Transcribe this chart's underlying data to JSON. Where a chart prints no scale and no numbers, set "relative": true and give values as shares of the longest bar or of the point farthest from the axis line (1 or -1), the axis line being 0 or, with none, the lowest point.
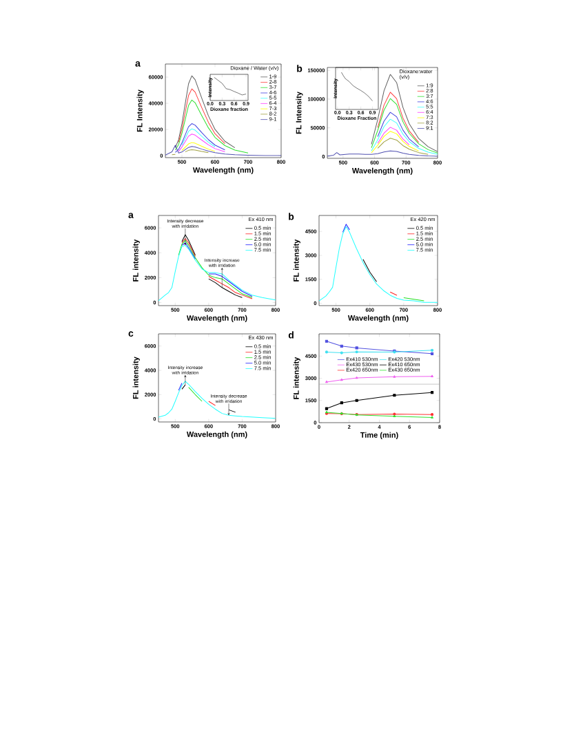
{
  "chart_data": [
    {
      "type": "line",
      "title": "a",
      "xlabel": "Wavelength (nm)",
      "ylabel": "FL Intensity",
      "legend_title": "Dioxane / Water (v/v)",
      "legend": "top right",
      "xlim": [
        450,
        800
      ],
      "ylim": [
        -1500,
        70000
      ],
      "xticks": [
        500,
        600,
        700,
        800
      ],
      "yticks": [
        0,
        20000,
        40000,
        60000
      ],
      "x": [
        450,
        470,
        480,
        490,
        500,
        510,
        520,
        530,
        540,
        560,
        580,
        600,
        630,
        660,
        700,
        750,
        800
      ],
      "series": [
        {
          "name": "1-9",
          "color": "#606060",
          "values": [
            null,
            null,
            6100,
            12200,
            24400,
            39700,
            54900,
            61000,
            58000,
            43900,
            30500,
            20100,
            11000,
            6100,
            null,
            null,
            null
          ]
        },
        {
          "name": "2-8",
          "color": "#ff4040",
          "values": [
            null,
            null,
            null,
            10200,
            20400,
            33200,
            45900,
            51000,
            48500,
            36700,
            25500,
            16800,
            9200,
            null,
            null,
            null,
            null
          ]
        },
        {
          "name": "3-7",
          "color": "#30e030",
          "values": [
            null,
            null,
            4300,
            8500,
            17000,
            27600,
            38300,
            42500,
            40400,
            30600,
            21300,
            14000,
            7700,
            4300,
            2100,
            null,
            null
          ]
        },
        {
          "name": "4-6",
          "color": "#4040e0",
          "values": [
            null,
            null,
            2500,
            4900,
            9800,
            15900,
            22100,
            24500,
            23300,
            17600,
            12300,
            8100,
            4400,
            null,
            null,
            null,
            null
          ]
        },
        {
          "name": "5-5",
          "color": "#40ffff",
          "values": [
            null,
            null,
            null,
            null,
            8200,
            13300,
            18500,
            20500,
            19500,
            14800,
            10300,
            6800,
            null,
            null,
            null,
            null,
            null
          ]
        },
        {
          "name": "6-4",
          "color": "#ff40ff",
          "values": [
            null,
            null,
            null,
            3300,
            6600,
            10700,
            14900,
            16500,
            15700,
            11900,
            8300,
            5400,
            3000,
            null,
            null,
            null,
            null
          ]
        },
        {
          "name": "7-3",
          "color": "#ffff00",
          "values": [
            null,
            null,
            null,
            null,
            4000,
            6500,
            9000,
            10000,
            9500,
            7200,
            5000,
            3300,
            null,
            null,
            null,
            null,
            null
          ]
        },
        {
          "name": "8-2",
          "color": "#a0a040",
          "values": [
            null,
            800,
            1000,
            null,
            null,
            2900,
            4100,
            4500,
            4300,
            3200,
            2300,
            null,
            null,
            null,
            null,
            null,
            null
          ]
        },
        {
          "name": "9-1",
          "color": "#5050b0",
          "values": [
            500,
            3000,
            8000,
            2000,
            2800,
            4600,
            6300,
            7000,
            6700,
            5000,
            3500,
            2300,
            1300,
            700,
            400,
            100,
            100
          ]
        }
      ]
    },
    {
      "type": "line",
      "relative": true,
      "xlabel": "Dioxane fraction",
      "ylabel": "Intensity",
      "tick_labels": "x",
      "xlim": [
        0,
        0.95
      ],
      "xticks": [
        {
          "value": 0,
          "label": "0.0"
        },
        0.3,
        0.6,
        0.9
      ],
      "color": "#202020",
      "x": [
        0.1,
        0.2,
        0.3,
        0.4,
        0.5,
        0.6,
        0.7,
        0.8,
        0.9
      ],
      "values": [
        1,
        0.87,
        0.74,
        0.51,
        0.47,
        0.39,
        0.32,
        0.24,
        0.28
      ]
    },
    {
      "type": "line",
      "title": "b",
      "xlabel": "Wavelength (nm)",
      "ylabel": "FL Intensity",
      "legend_title": "Dioxane:water (v/v)",
      "legend": "top right",
      "xlim": [
        450,
        800
      ],
      "ylim": [
        -3000,
        155000
      ],
      "xticks": [
        500,
        600,
        700,
        800
      ],
      "yticks": [
        0,
        50000,
        100000,
        150000
      ],
      "x": [
        450,
        470,
        480,
        490,
        520,
        550,
        570,
        590,
        610,
        630,
        650,
        670,
        690,
        710,
        740,
        770,
        800
      ],
      "series": [
        {
          "name": "1:9",
          "color": "#606060",
          "values": [
            null,
            null,
            null,
            null,
            null,
            null,
            null,
            21500,
            64400,
            114400,
            143000,
            128700,
            85800,
            57200,
            31500,
            17200,
            8600
          ]
        },
        {
          "name": "2:8",
          "color": "#ff4040",
          "values": [
            null,
            null,
            null,
            null,
            null,
            null,
            null,
            null,
            50400,
            89600,
            112000,
            100800,
            67200,
            44800,
            24600,
            null,
            null
          ]
        },
        {
          "name": "3:7",
          "color": "#30e030",
          "values": [
            null,
            null,
            null,
            null,
            null,
            null,
            null,
            15200,
            45500,
            80800,
            101000,
            90900,
            60600,
            40400,
            22200,
            12100,
            6100
          ]
        },
        {
          "name": "4:6",
          "color": "#4040e0",
          "values": [
            null,
            null,
            null,
            null,
            null,
            null,
            null,
            null,
            34700,
            61600,
            77000,
            69300,
            46200,
            30800,
            16900,
            null,
            null
          ]
        },
        {
          "name": "5:5",
          "color": "#40ffff",
          "values": [
            null,
            null,
            null,
            null,
            null,
            null,
            null,
            9800,
            29300,
            52000,
            65000,
            58500,
            39000,
            26000,
            14300,
            7800,
            3900
          ]
        },
        {
          "name": "6:4",
          "color": "#ff40ff",
          "values": [
            null,
            null,
            null,
            null,
            null,
            null,
            null,
            null,
            23000,
            40800,
            51000,
            45900,
            30600,
            20400,
            null,
            null,
            null
          ]
        },
        {
          "name": "7:3",
          "color": "#ffff00",
          "values": [
            null,
            null,
            null,
            null,
            null,
            null,
            null,
            6600,
            19800,
            35200,
            44000,
            39600,
            26400,
            17600,
            9700,
            null,
            null
          ]
        },
        {
          "name": "8:2",
          "color": "#a0a040",
          "values": [
            null,
            null,
            null,
            null,
            null,
            null,
            null,
            null,
            14400,
            25600,
            32000,
            28800,
            19200,
            12800,
            7000,
            3800,
            null
          ]
        },
        {
          "name": "9:1",
          "color": "#5050b0",
          "values": [
            1000,
            2500,
            7000,
            3000,
            4500,
            4500,
            4000,
            4000,
            5000,
            8000,
            10000,
            9000,
            6000,
            4000,
            2200,
            1200,
            600
          ]
        }
      ]
    },
    {
      "type": "line",
      "relative": true,
      "xlabel": "Dioxane Fraction",
      "ylabel": "Intensity",
      "tick_labels": "x",
      "xlim": [
        -0.05,
        1.05
      ],
      "xticks": [
        {
          "value": 0,
          "label": "0.0"
        },
        0.3,
        0.6,
        0.9
      ],
      "color": "#202020",
      "x": [
        0.1,
        0.15,
        0.2,
        0.3,
        0.4,
        0.5,
        0.6,
        0.7,
        0.8,
        0.9
      ],
      "values": [
        1,
        0.91,
        0.83,
        0.75,
        0.64,
        0.57,
        0.51,
        0.44,
        0.35,
        0.23
      ]
    },
    {
      "type": "line",
      "title": "a",
      "xlabel": "Wavelength (nm)",
      "ylabel": "FL intensity",
      "legend_title": "Ex 410 nm",
      "legend": "top right",
      "xlim": [
        450,
        800
      ],
      "ylim": [
        -250,
        7000
      ],
      "xticks": [
        500,
        600,
        700,
        800
      ],
      "yticks": [
        0,
        2000,
        4000,
        6000
      ],
      "annotations": [
        {
          "text": "Intensity decrease with irridation",
          "x": 530,
          "y": 5450
        },
        {
          "text": "Intensity increase with irridation",
          "x": 640,
          "y": 2300
        }
      ],
      "x": [
        450,
        470,
        480,
        490,
        500,
        510,
        520,
        530,
        540,
        560,
        580,
        600,
        620,
        640,
        660,
        680,
        700,
        730,
        760,
        800
      ],
      "series": [
        {
          "name": "0.5 min",
          "color": "#000000",
          "values": [
            null,
            null,
            null,
            null,
            null,
            null,
            4900,
            5450,
            5000,
            3800,
            null,
            1900,
            1600,
            1200,
            900,
            600,
            400,
            null,
            null,
            null
          ]
        },
        {
          "name": "1.5 min",
          "color": "#ff2020",
          "values": [
            null,
            null,
            null,
            null,
            null,
            null,
            4800,
            5150,
            4800,
            3700,
            null,
            2100,
            1800,
            1500,
            1200,
            800,
            600,
            300,
            null,
            null
          ]
        },
        {
          "name": "2.5 min",
          "color": "#20e020",
          "values": [
            null,
            null,
            null,
            null,
            null,
            3800,
            4700,
            5000,
            4600,
            3600,
            2800,
            2200,
            2000,
            1900,
            1500,
            1100,
            700,
            400,
            null,
            null
          ]
        },
        {
          "name": "5.0 min",
          "color": "#2020ff",
          "values": [
            null,
            null,
            null,
            null,
            null,
            null,
            4600,
            4800,
            4400,
            3500,
            null,
            2300,
            2300,
            2100,
            1700,
            1300,
            900,
            500,
            null,
            null
          ]
        },
        {
          "name": "7.5 min",
          "color": "#20ffff",
          "values": [
            150,
            600,
            800,
            1200,
            2500,
            3700,
            4500,
            4600,
            4300,
            3400,
            2700,
            2400,
            2400,
            2300,
            1800,
            1400,
            1000,
            600,
            400,
            200
          ]
        }
      ]
    },
    {
      "type": "line",
      "title": "b",
      "xlabel": "Wavelength (nm)",
      "ylabel": "FL intensity",
      "legend_title": "Ex 420 nm",
      "legend": "top right",
      "xlim": [
        450,
        800
      ],
      "ylim": [
        -150,
        5500
      ],
      "xticks": [
        500,
        600,
        700,
        800
      ],
      "yticks": [
        0,
        1500,
        3000,
        4500
      ],
      "x": [
        450,
        470,
        480,
        490,
        500,
        510,
        520,
        530,
        540,
        560,
        580,
        600,
        620,
        640,
        660,
        680,
        700,
        730,
        760,
        800
      ],
      "series": [
        {
          "name": "0.5 min",
          "color": "#000000",
          "values": [
            null,
            null,
            null,
            null,
            null,
            null,
            null,
            null,
            null,
            null,
            2750,
            1950,
            1350,
            null,
            null,
            null,
            null,
            null,
            null,
            null
          ]
        },
        {
          "name": "1.5 min",
          "color": "#ff2020",
          "values": [
            null,
            null,
            null,
            null,
            null,
            null,
            null,
            null,
            null,
            null,
            null,
            null,
            null,
            null,
            700,
            500,
            null,
            null,
            null,
            null
          ]
        },
        {
          "name": "2.5 min",
          "color": "#20e020",
          "values": [
            null,
            null,
            null,
            null,
            null,
            null,
            null,
            null,
            null,
            null,
            null,
            null,
            null,
            null,
            null,
            null,
            350,
            250,
            150,
            null
          ]
        },
        {
          "name": "5.0 min",
          "color": "#2020ff",
          "values": [
            null,
            null,
            null,
            null,
            null,
            null,
            4450,
            4950,
            4600,
            null,
            null,
            null,
            null,
            null,
            null,
            null,
            null,
            null,
            null,
            null
          ]
        },
        {
          "name": "7.5 min",
          "color": "#20ffff",
          "values": [
            150,
            450,
            700,
            1000,
            2250,
            3450,
            4350,
            4800,
            4450,
            3450,
            2550,
            1800,
            1200,
            800,
            500,
            300,
            200,
            150,
            50,
            50
          ]
        }
      ]
    },
    {
      "type": "line",
      "title": "c",
      "xlabel": "Wavelength (nm)",
      "ylabel": "FL intensity",
      "legend_title": "Ex 430 nm",
      "legend": "top right",
      "xlim": [
        450,
        800
      ],
      "ylim": [
        -250,
        7000
      ],
      "xticks": [
        500,
        600,
        700,
        800
      ],
      "yticks": [
        0,
        2000,
        4000,
        6000
      ],
      "annotations": [
        {
          "text": "Intensity increase with irridation",
          "x": 530,
          "y": 3100
        },
        {
          "text": "Intensity decrease with irridation",
          "x": 660,
          "y": 750
        }
      ],
      "x": [
        450,
        470,
        480,
        490,
        500,
        510,
        520,
        530,
        540,
        560,
        580,
        600,
        620,
        640,
        660,
        680,
        700,
        730,
        760,
        800
      ],
      "series": [
        {
          "name": "0.5 min",
          "color": "#000000",
          "values": [
            null,
            null,
            null,
            null,
            null,
            null,
            2450,
            2800,
            null,
            null,
            null,
            null,
            null,
            null,
            750,
            550,
            null,
            null,
            null,
            null
          ]
        },
        {
          "name": "1.5 min",
          "color": "#ff2020",
          "values": [
            null,
            null,
            null,
            null,
            null,
            null,
            null,
            null,
            null,
            null,
            null,
            1450,
            1100,
            null,
            null,
            null,
            null,
            null,
            null,
            null
          ]
        },
        {
          "name": "2.5 min",
          "color": "#20e020",
          "values": [
            null,
            null,
            null,
            null,
            null,
            null,
            null,
            null,
            2600,
            2000,
            1450,
            null,
            null,
            null,
            null,
            null,
            null,
            null,
            null,
            null
          ]
        },
        {
          "name": "5.0 min",
          "color": "#2020ff",
          "values": [
            null,
            null,
            null,
            null,
            null,
            2350,
            2950,
            null,
            null,
            null,
            null,
            null,
            null,
            null,
            null,
            null,
            null,
            null,
            null,
            null
          ]
        },
        {
          "name": "7.5 min",
          "color": "#20ffff",
          "values": [
            150,
            300,
            500,
            800,
            1450,
            2150,
            2750,
            3100,
            2850,
            2250,
            1700,
            1200,
            800,
            450,
            300,
            250,
            200,
            150,
            100,
            50
          ]
        }
      ]
    },
    {
      "type": "line",
      "title": "d",
      "xlabel": "Time (min)",
      "ylabel": "FL intensity",
      "legend": "center",
      "xlim": [
        0,
        8
      ],
      "ylim": [
        0,
        6000
      ],
      "xticks": [
        0,
        2,
        4,
        6,
        8
      ],
      "yticks": [
        0,
        1500,
        3000,
        4500
      ],
      "ref_lines": [
        {
          "axis": "y",
          "value": 2600,
          "color": "#a0a0a0"
        }
      ],
      "x": [
        0.5,
        1.5,
        2.5,
        5,
        7.5
      ],
      "series": [
        {
          "name": "Ex410  530nm",
          "color": "#5050e0",
          "marker": "square",
          "values": [
            5500,
            5170,
            5050,
            4840,
            4660
          ]
        },
        {
          "name": "Ex420  530nm",
          "color": "#40e0f0",
          "marker": "circle",
          "values": [
            4770,
            4720,
            4780,
            4770,
            4890
          ]
        },
        {
          "name": "Ex430  530nm",
          "color": "#f060f0",
          "marker": "triangle",
          "values": [
            2750,
            2890,
            3020,
            3100,
            3130
          ]
        },
        {
          "name": "Ex410  650nm",
          "color": "#000000",
          "marker": "square",
          "values": [
            950,
            1340,
            1500,
            1850,
            2040
          ]
        },
        {
          "name": "Ex420  650nm",
          "color": "#ff3030",
          "marker": "circle",
          "values": [
            620,
            600,
            550,
            580,
            550
          ]
        },
        {
          "name": "Ex430  650nm",
          "color": "#30e030",
          "marker": "triangle",
          "values": [
            700,
            620,
            520,
            430,
            350
          ]
        }
      ]
    }
  ]
}
